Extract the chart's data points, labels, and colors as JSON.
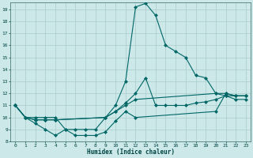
{
  "xlabel": "Humidex (Indice chaleur)",
  "background_color": "#cce8e8",
  "grid_color": "#aacccc",
  "line_color": "#006666",
  "xlim": [
    -0.5,
    23.5
  ],
  "ylim": [
    8,
    19.6
  ],
  "xticks": [
    0,
    1,
    2,
    3,
    4,
    5,
    6,
    7,
    8,
    9,
    10,
    11,
    12,
    13,
    14,
    15,
    16,
    17,
    18,
    19,
    20,
    21,
    22,
    23
  ],
  "yticks": [
    8,
    9,
    10,
    11,
    12,
    13,
    14,
    15,
    16,
    17,
    18,
    19
  ],
  "line1_x": [
    0,
    1,
    2,
    3,
    4,
    5,
    6,
    7,
    8,
    9,
    10,
    11,
    12,
    13,
    14,
    15,
    16,
    17,
    18,
    19,
    20,
    21,
    22,
    23
  ],
  "line1_y": [
    11,
    10,
    10,
    10,
    10,
    9,
    9,
    9,
    9,
    10,
    11,
    13,
    19.2,
    19.5,
    18.5,
    16,
    15.5,
    15,
    13.5,
    13.3,
    12,
    11.8,
    11.5,
    11.5
  ],
  "line2_x": [
    0,
    1,
    2,
    3,
    4,
    5,
    6,
    7,
    8,
    9,
    10,
    11,
    12,
    20,
    21,
    22,
    23
  ],
  "line2_y": [
    11,
    10,
    9.5,
    9,
    8.5,
    9,
    8.5,
    8.5,
    8.5,
    8.8,
    9.7,
    10.5,
    10,
    10.5,
    12,
    11.8,
    11.8
  ],
  "line3_x": [
    0,
    1,
    2,
    3,
    4,
    9,
    10,
    11,
    12,
    20,
    21,
    22,
    23
  ],
  "line3_y": [
    11,
    10,
    9.8,
    9.8,
    9.8,
    10,
    10.5,
    11,
    11.5,
    12,
    12,
    11.8,
    11.8
  ],
  "line4_x": [
    0,
    1,
    2,
    3,
    4,
    9,
    10,
    11,
    12,
    13,
    14,
    15,
    16,
    17,
    18,
    19,
    20,
    21,
    22,
    23
  ],
  "line4_y": [
    11,
    10,
    9.8,
    9.8,
    9.8,
    10,
    10.5,
    11.2,
    12,
    13.3,
    11,
    11,
    11,
    11,
    11.2,
    11.3,
    11.5,
    11.8,
    11.8,
    11.8
  ]
}
